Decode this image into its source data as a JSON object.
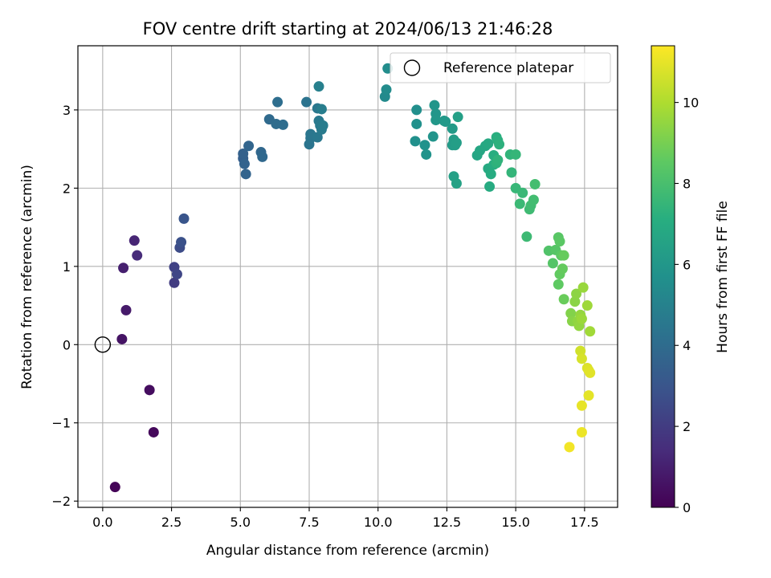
{
  "chart_data": {
    "type": "scatter",
    "title": "FOV centre drift starting at 2024/06/13 21:46:28",
    "xlabel": "Angular distance from reference (arcmin)",
    "ylabel": "Rotation from reference (arcmin)",
    "xlim": [
      -0.9,
      18.7
    ],
    "ylim": [
      -2.08,
      3.82
    ],
    "xticks": [
      0.0,
      2.5,
      5.0,
      7.5,
      10.0,
      12.5,
      15.0,
      17.5
    ],
    "xtick_labels": [
      "0.0",
      "2.5",
      "5.0",
      "7.5",
      "10.0",
      "12.5",
      "15.0",
      "17.5"
    ],
    "yticks": [
      -2,
      -1,
      0,
      1,
      2,
      3
    ],
    "ytick_labels": [
      "−2",
      "−1",
      "0",
      "1",
      "2",
      "3"
    ],
    "grid": true,
    "legend": {
      "position": "top-right",
      "entries": [
        "Reference platepar"
      ]
    },
    "reference_point": {
      "x": 0,
      "y": 0
    },
    "colorbar": {
      "label": "Hours from first FF file",
      "colormap": "viridis",
      "range": [
        0,
        11.4
      ],
      "ticks": [
        0,
        2,
        4,
        6,
        8,
        10
      ],
      "tick_labels": [
        "0",
        "2",
        "4",
        "6",
        "8",
        "10"
      ]
    },
    "points": [
      [
        0.45,
        -1.82,
        0.1
      ],
      [
        1.85,
        -1.12,
        0.25
      ],
      [
        1.7,
        -0.58,
        0.4
      ],
      [
        0.7,
        0.07,
        0.6
      ],
      [
        0.85,
        0.44,
        0.8
      ],
      [
        0.75,
        0.98,
        1.0
      ],
      [
        1.15,
        1.33,
        1.2
      ],
      [
        1.25,
        1.14,
        1.4
      ],
      [
        2.6,
        0.79,
        2.0
      ],
      [
        2.6,
        0.99,
        2.2
      ],
      [
        2.7,
        0.9,
        2.4
      ],
      [
        2.8,
        1.24,
        2.6
      ],
      [
        2.85,
        1.31,
        2.8
      ],
      [
        2.95,
        1.61,
        3.0
      ],
      [
        5.1,
        2.38,
        3.4
      ],
      [
        5.1,
        2.44,
        3.5
      ],
      [
        5.15,
        2.31,
        3.6
      ],
      [
        5.2,
        2.18,
        3.65
      ],
      [
        5.3,
        2.54,
        3.7
      ],
      [
        5.75,
        2.46,
        3.8
      ],
      [
        5.8,
        2.4,
        3.85
      ],
      [
        6.05,
        2.88,
        3.9
      ],
      [
        6.3,
        2.82,
        4.0
      ],
      [
        6.55,
        2.81,
        4.05
      ],
      [
        6.35,
        3.1,
        4.1
      ],
      [
        7.4,
        3.1,
        4.3
      ],
      [
        7.5,
        2.56,
        4.35
      ],
      [
        7.55,
        2.64,
        4.4
      ],
      [
        7.55,
        2.69,
        4.45
      ],
      [
        7.8,
        3.02,
        4.5
      ],
      [
        7.8,
        2.65,
        4.55
      ],
      [
        7.85,
        2.86,
        4.6
      ],
      [
        7.9,
        2.8,
        4.65
      ],
      [
        7.95,
        2.75,
        4.7
      ],
      [
        8.0,
        2.8,
        4.75
      ],
      [
        7.95,
        3.01,
        4.8
      ],
      [
        7.85,
        3.3,
        4.9
      ],
      [
        10.25,
        3.17,
        5.4
      ],
      [
        10.3,
        3.26,
        5.45
      ],
      [
        10.35,
        3.53,
        5.5
      ],
      [
        11.4,
        3.0,
        5.6
      ],
      [
        11.35,
        2.6,
        5.65
      ],
      [
        11.4,
        2.82,
        5.7
      ],
      [
        11.7,
        2.55,
        5.75
      ],
      [
        11.75,
        2.43,
        5.8
      ],
      [
        12.0,
        2.66,
        5.85
      ],
      [
        12.05,
        3.06,
        5.9
      ],
      [
        12.1,
        2.95,
        5.95
      ],
      [
        12.1,
        2.87,
        6.0
      ],
      [
        12.4,
        2.86,
        6.05
      ],
      [
        12.45,
        2.85,
        6.1
      ],
      [
        12.7,
        2.76,
        6.15
      ],
      [
        12.7,
        2.55,
        6.2
      ],
      [
        12.75,
        2.62,
        6.25
      ],
      [
        12.8,
        2.55,
        6.3
      ],
      [
        12.85,
        2.58,
        6.35
      ],
      [
        12.9,
        2.91,
        6.4
      ],
      [
        12.75,
        2.15,
        6.45
      ],
      [
        12.85,
        2.06,
        6.5
      ],
      [
        13.6,
        2.42,
        6.7
      ],
      [
        13.7,
        2.48,
        6.75
      ],
      [
        13.9,
        2.54,
        6.8
      ],
      [
        14.0,
        2.57,
        6.85
      ],
      [
        14.0,
        2.25,
        6.9
      ],
      [
        14.05,
        2.02,
        6.95
      ],
      [
        14.1,
        2.18,
        7.0
      ],
      [
        14.2,
        2.3,
        7.05
      ],
      [
        14.2,
        2.42,
        7.1
      ],
      [
        14.3,
        2.65,
        7.15
      ],
      [
        14.35,
        2.61,
        7.2
      ],
      [
        14.4,
        2.56,
        7.25
      ],
      [
        14.3,
        2.32,
        7.3
      ],
      [
        14.35,
        2.36,
        7.35
      ],
      [
        14.8,
        2.43,
        7.4
      ],
      [
        14.85,
        2.2,
        7.45
      ],
      [
        15.0,
        2.43,
        7.5
      ],
      [
        15.0,
        2.0,
        7.55
      ],
      [
        15.25,
        1.94,
        7.6
      ],
      [
        15.15,
        1.8,
        7.65
      ],
      [
        15.4,
        1.38,
        7.7
      ],
      [
        15.5,
        1.73,
        7.75
      ],
      [
        15.55,
        1.78,
        7.8
      ],
      [
        15.65,
        1.85,
        7.85
      ],
      [
        15.7,
        2.05,
        7.9
      ],
      [
        16.2,
        1.2,
        8.2
      ],
      [
        16.35,
        1.04,
        8.3
      ],
      [
        16.45,
        1.21,
        8.35
      ],
      [
        16.55,
        1.37,
        8.4
      ],
      [
        16.6,
        1.32,
        8.45
      ],
      [
        16.65,
        1.14,
        8.5
      ],
      [
        16.55,
        0.77,
        8.55
      ],
      [
        16.6,
        0.9,
        8.6
      ],
      [
        16.7,
        0.97,
        8.65
      ],
      [
        16.75,
        1.14,
        8.7
      ],
      [
        16.75,
        0.58,
        8.75
      ],
      [
        17.0,
        0.4,
        9.2
      ],
      [
        17.05,
        0.3,
        9.3
      ],
      [
        17.15,
        0.55,
        9.35
      ],
      [
        17.2,
        0.65,
        9.4
      ],
      [
        17.25,
        0.3,
        9.45
      ],
      [
        17.3,
        0.24,
        9.5
      ],
      [
        17.35,
        0.38,
        9.55
      ],
      [
        17.45,
        0.73,
        9.6
      ],
      [
        17.4,
        0.33,
        9.65
      ],
      [
        17.6,
        0.5,
        9.7
      ],
      [
        17.7,
        0.17,
        9.75
      ],
      [
        17.35,
        -0.08,
        10.6
      ],
      [
        17.4,
        -0.18,
        10.7
      ],
      [
        17.6,
        -0.3,
        10.8
      ],
      [
        17.65,
        -0.33,
        10.85
      ],
      [
        17.7,
        -0.36,
        10.9
      ],
      [
        17.65,
        -0.65,
        10.95
      ],
      [
        17.4,
        -0.78,
        11.0
      ],
      [
        17.4,
        -1.12,
        11.1
      ],
      [
        16.95,
        -1.31,
        11.2
      ]
    ]
  }
}
